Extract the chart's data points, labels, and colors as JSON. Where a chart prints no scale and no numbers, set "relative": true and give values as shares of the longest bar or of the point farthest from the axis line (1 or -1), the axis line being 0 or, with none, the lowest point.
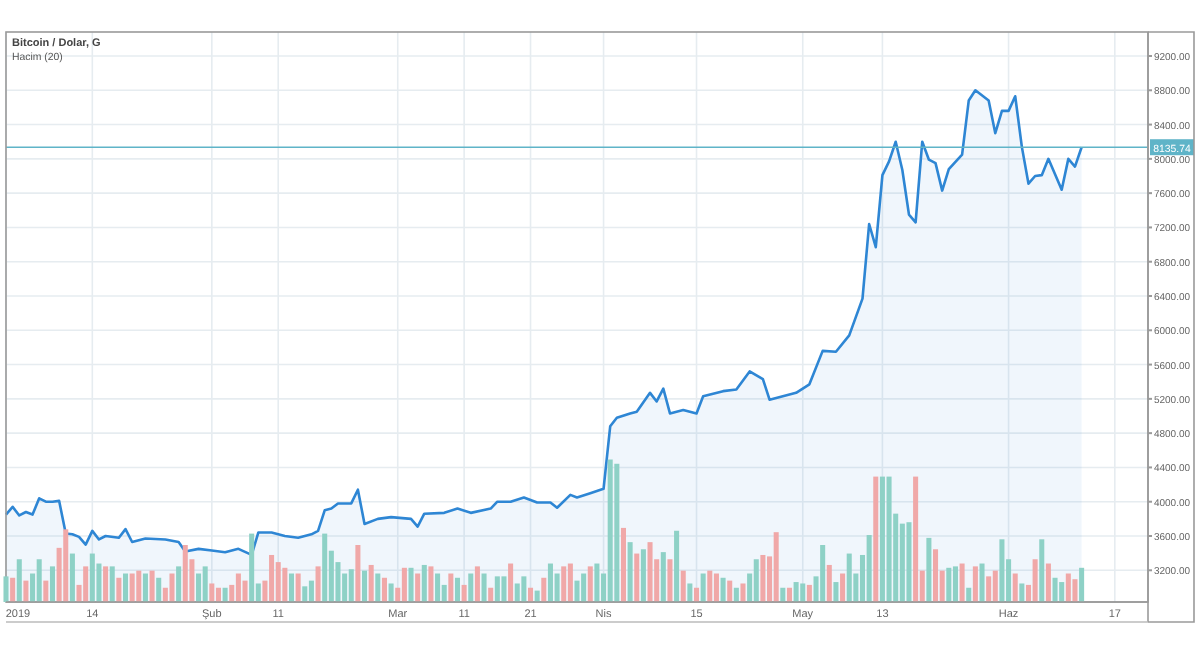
{
  "chart_data": [
    {
      "type": "area",
      "title": "Bitcoin / Dolar, G",
      "subtitle": "Hacim (20)",
      "x": [
        "2019-01-01",
        "2019-01-02",
        "2019-01-03",
        "2019-01-04",
        "2019-01-05",
        "2019-01-06",
        "2019-01-07",
        "2019-01-08",
        "2019-01-09",
        "2019-01-10",
        "2019-01-11",
        "2019-01-12",
        "2019-01-13",
        "2019-01-14",
        "2019-01-15",
        "2019-01-16",
        "2019-01-18",
        "2019-01-19",
        "2019-01-20",
        "2019-01-22",
        "2019-01-25",
        "2019-01-27",
        "2019-01-28",
        "2019-01-30",
        "2019-02-01",
        "2019-02-03",
        "2019-02-05",
        "2019-02-07",
        "2019-02-08",
        "2019-02-10",
        "2019-02-12",
        "2019-02-14",
        "2019-02-16",
        "2019-02-17",
        "2019-02-18",
        "2019-02-19",
        "2019-02-20",
        "2019-02-22",
        "2019-02-23",
        "2019-02-24",
        "2019-02-26",
        "2019-02-28",
        "2019-03-03",
        "2019-03-04",
        "2019-03-05",
        "2019-03-08",
        "2019-03-10",
        "2019-03-12",
        "2019-03-15",
        "2019-03-16",
        "2019-03-18",
        "2019-03-20",
        "2019-03-22",
        "2019-03-24",
        "2019-03-25",
        "2019-03-27",
        "2019-03-28",
        "2019-03-30",
        "2019-04-01",
        "2019-04-02",
        "2019-04-03",
        "2019-04-05",
        "2019-04-06",
        "2019-04-08",
        "2019-04-09",
        "2019-04-10",
        "2019-04-11",
        "2019-04-13",
        "2019-04-15",
        "2019-04-16",
        "2019-04-19",
        "2019-04-21",
        "2019-04-23",
        "2019-04-25",
        "2019-04-26",
        "2019-04-30",
        "2019-05-02",
        "2019-05-04",
        "2019-05-06",
        "2019-05-08",
        "2019-05-10",
        "2019-05-11",
        "2019-05-12",
        "2019-05-13",
        "2019-05-14",
        "2019-05-15",
        "2019-05-16",
        "2019-05-17",
        "2019-05-18",
        "2019-05-19",
        "2019-05-20",
        "2019-05-21",
        "2019-05-22",
        "2019-05-23",
        "2019-05-25",
        "2019-05-26",
        "2019-05-27",
        "2019-05-29",
        "2019-05-30",
        "2019-05-31",
        "2019-06-01",
        "2019-06-02",
        "2019-06-03",
        "2019-06-04",
        "2019-06-05",
        "2019-06-06",
        "2019-06-07",
        "2019-06-09",
        "2019-06-10",
        "2019-06-11",
        "2019-06-12"
      ],
      "series": [
        {
          "color": "#2e86d4",
          "values": [
            3850,
            3940,
            3840,
            3880,
            3850,
            4040,
            4000,
            4000,
            4010,
            3630,
            3620,
            3590,
            3500,
            3660,
            3560,
            3600,
            3580,
            3680,
            3530,
            3570,
            3560,
            3530,
            3420,
            3450,
            3430,
            3410,
            3450,
            3380,
            3640,
            3640,
            3600,
            3580,
            3620,
            3660,
            3900,
            3920,
            3980,
            3980,
            4140,
            3740,
            3800,
            3820,
            3800,
            3710,
            3860,
            3870,
            3920,
            3870,
            3920,
            4000,
            4000,
            4050,
            3990,
            3990,
            3930,
            4080,
            4050,
            4100,
            4150,
            4880,
            4980,
            5030,
            5050,
            5270,
            5170,
            5320,
            5030,
            5070,
            5030,
            5230,
            5290,
            5310,
            5520,
            5430,
            5190,
            5270,
            5370,
            5760,
            5750,
            5940,
            6370,
            7240,
            6970,
            7810,
            7970,
            8200,
            7870,
            7350,
            7260,
            8200,
            7990,
            7950,
            7630,
            7880,
            8050,
            8680,
            8800,
            8680,
            8300,
            8560,
            8560,
            8730,
            8140,
            7710,
            7800,
            7810,
            8000,
            7640,
            8000,
            7910,
            8135.74
          ]
        }
      ],
      "xlim": [
        "2019-01-01",
        "2019-06-22"
      ],
      "xticks": [
        {
          "value": "2019-01-01",
          "label": "2019"
        },
        {
          "value": "2019-01-14",
          "label": "14"
        },
        {
          "value": "2019-02-01",
          "label": "Şub"
        },
        {
          "value": "2019-02-11",
          "label": "11"
        },
        {
          "value": "2019-03-01",
          "label": "Mar"
        },
        {
          "value": "2019-03-11",
          "label": "11"
        },
        {
          "value": "2019-03-21",
          "label": "21"
        },
        {
          "value": "2019-04-01",
          "label": "Nis"
        },
        {
          "value": "2019-04-15",
          "label": "15"
        },
        {
          "value": "2019-05-01",
          "label": "May"
        },
        {
          "value": "2019-05-13",
          "label": "13"
        },
        {
          "value": "2019-06-01",
          "label": "Haz"
        },
        {
          "value": "2019-06-17",
          "label": "17"
        }
      ],
      "ylim": [
        2830,
        9480
      ],
      "yticks": [
        {
          "value": 3200,
          "label": "3200.00"
        },
        {
          "value": 3600,
          "label": "3600.00"
        },
        {
          "value": 4000,
          "label": "4000.00"
        },
        {
          "value": 4400,
          "label": "4400.00"
        },
        {
          "value": 4800,
          "label": "4800.00"
        },
        {
          "value": 5200,
          "label": "5200.00"
        },
        {
          "value": 5600,
          "label": "5600.00"
        },
        {
          "value": 6000,
          "label": "6000.00"
        },
        {
          "value": 6400,
          "label": "6400.00"
        },
        {
          "value": 6800,
          "label": "6800.00"
        },
        {
          "value": 7200,
          "label": "7200.00"
        },
        {
          "value": 7600,
          "label": "7600.00"
        },
        {
          "value": 8000,
          "label": "8000.00"
        },
        {
          "value": 8400,
          "label": "8400.00"
        },
        {
          "value": 8800,
          "label": "8800.00"
        },
        {
          "value": 9200,
          "label": "9200.00"
        }
      ],
      "ref_lines": [
        {
          "axis": "y",
          "value": 8135.74,
          "label": "8135.74",
          "color": "#5fb4c8"
        }
      ],
      "grid": true
    },
    {
      "type": "bar",
      "relative": true,
      "xlim": [
        "2019-01-01",
        "2019-06-22"
      ],
      "x": [
        "2019-01-01",
        "2019-01-02",
        "2019-01-03",
        "2019-01-04",
        "2019-01-05",
        "2019-01-06",
        "2019-01-07",
        "2019-01-08",
        "2019-01-09",
        "2019-01-10",
        "2019-01-11",
        "2019-01-12",
        "2019-01-13",
        "2019-01-14",
        "2019-01-15",
        "2019-01-16",
        "2019-01-17",
        "2019-01-18",
        "2019-01-19",
        "2019-01-20",
        "2019-01-21",
        "2019-01-22",
        "2019-01-23",
        "2019-01-24",
        "2019-01-25",
        "2019-01-26",
        "2019-01-27",
        "2019-01-28",
        "2019-01-29",
        "2019-01-30",
        "2019-01-31",
        "2019-02-01",
        "2019-02-02",
        "2019-02-03",
        "2019-02-04",
        "2019-02-05",
        "2019-02-06",
        "2019-02-07",
        "2019-02-08",
        "2019-02-09",
        "2019-02-10",
        "2019-02-11",
        "2019-02-12",
        "2019-02-13",
        "2019-02-14",
        "2019-02-15",
        "2019-02-16",
        "2019-02-17",
        "2019-02-18",
        "2019-02-19",
        "2019-02-20",
        "2019-02-21",
        "2019-02-22",
        "2019-02-23",
        "2019-02-24",
        "2019-02-25",
        "2019-02-26",
        "2019-02-27",
        "2019-02-28",
        "2019-03-01",
        "2019-03-02",
        "2019-03-03",
        "2019-03-04",
        "2019-03-05",
        "2019-03-06",
        "2019-03-07",
        "2019-03-08",
        "2019-03-09",
        "2019-03-10",
        "2019-03-11",
        "2019-03-12",
        "2019-03-13",
        "2019-03-14",
        "2019-03-15",
        "2019-03-16",
        "2019-03-17",
        "2019-03-18",
        "2019-03-19",
        "2019-03-20",
        "2019-03-21",
        "2019-03-22",
        "2019-03-23",
        "2019-03-24",
        "2019-03-25",
        "2019-03-26",
        "2019-03-27",
        "2019-03-28",
        "2019-03-29",
        "2019-03-30",
        "2019-03-31",
        "2019-04-01",
        "2019-04-02",
        "2019-04-03",
        "2019-04-04",
        "2019-04-05",
        "2019-04-06",
        "2019-04-07",
        "2019-04-08",
        "2019-04-09",
        "2019-04-10",
        "2019-04-11",
        "2019-04-12",
        "2019-04-13",
        "2019-04-14",
        "2019-04-15",
        "2019-04-16",
        "2019-04-17",
        "2019-04-18",
        "2019-04-19",
        "2019-04-20",
        "2019-04-21",
        "2019-04-22",
        "2019-04-23",
        "2019-04-24",
        "2019-04-25",
        "2019-04-26",
        "2019-04-27",
        "2019-04-28",
        "2019-04-29",
        "2019-04-30",
        "2019-05-01",
        "2019-05-02",
        "2019-05-03",
        "2019-05-04",
        "2019-05-05",
        "2019-05-06",
        "2019-05-07",
        "2019-05-08",
        "2019-05-09",
        "2019-05-10",
        "2019-05-11",
        "2019-05-12",
        "2019-05-13",
        "2019-05-14",
        "2019-05-15",
        "2019-05-16",
        "2019-05-17",
        "2019-05-18",
        "2019-05-19",
        "2019-05-20",
        "2019-05-21",
        "2019-05-22",
        "2019-05-23",
        "2019-05-24",
        "2019-05-25",
        "2019-05-26",
        "2019-05-27",
        "2019-05-28",
        "2019-05-29",
        "2019-05-30",
        "2019-05-31",
        "2019-06-01",
        "2019-06-02",
        "2019-06-03",
        "2019-06-04",
        "2019-06-05",
        "2019-06-06",
        "2019-06-07",
        "2019-06-08",
        "2019-06-09",
        "2019-06-10",
        "2019-06-11",
        "2019-06-12"
      ],
      "values": [
        0.18,
        0.17,
        0.3,
        0.15,
        0.2,
        0.3,
        0.15,
        0.25,
        0.38,
        0.51,
        0.34,
        0.12,
        0.25,
        0.34,
        0.27,
        0.25,
        0.25,
        0.17,
        0.2,
        0.2,
        0.22,
        0.2,
        0.22,
        0.17,
        0.1,
        0.2,
        0.25,
        0.4,
        0.3,
        0.2,
        0.25,
        0.13,
        0.1,
        0.1,
        0.12,
        0.2,
        0.15,
        0.48,
        0.13,
        0.15,
        0.33,
        0.28,
        0.24,
        0.2,
        0.2,
        0.11,
        0.15,
        0.25,
        0.48,
        0.36,
        0.28,
        0.2,
        0.23,
        0.4,
        0.22,
        0.26,
        0.2,
        0.17,
        0.13,
        0.1,
        0.24,
        0.24,
        0.2,
        0.26,
        0.25,
        0.2,
        0.12,
        0.2,
        0.17,
        0.12,
        0.2,
        0.25,
        0.2,
        0.1,
        0.18,
        0.18,
        0.27,
        0.13,
        0.18,
        0.1,
        0.08,
        0.17,
        0.27,
        0.2,
        0.25,
        0.27,
        0.15,
        0.2,
        0.25,
        0.27,
        0.2,
        1.0,
        0.97,
        0.52,
        0.42,
        0.34,
        0.37,
        0.42,
        0.3,
        0.35,
        0.3,
        0.5,
        0.22,
        0.13,
        0.1,
        0.2,
        0.22,
        0.2,
        0.17,
        0.15,
        0.1,
        0.13,
        0.2,
        0.3,
        0.33,
        0.32,
        0.49,
        0.1,
        0.1,
        0.14,
        0.13,
        0.12,
        0.18,
        0.4,
        0.26,
        0.14,
        0.2,
        0.34,
        0.2,
        0.33,
        0.47,
        0.88,
        0.88,
        0.88,
        0.62,
        0.55,
        0.56,
        0.88,
        0.22,
        0.45,
        0.37,
        0.22,
        0.24,
        0.25,
        0.27,
        0.1,
        0.25,
        0.27,
        0.18,
        0.22,
        0.44,
        0.3,
        0.2,
        0.13,
        0.12,
        0.3,
        0.44,
        0.27,
        0.17,
        0.14,
        0.2,
        0.16,
        0.24
      ],
      "colors": [
        "#8ed1c6",
        "#f0a8a8",
        "#8ed1c6",
        "#f0a8a8",
        "#8ed1c6",
        "#8ed1c6",
        "#f0a8a8",
        "#8ed1c6",
        "#f0a8a8",
        "#f0a8a8",
        "#8ed1c6",
        "#f0a8a8",
        "#f0a8a8",
        "#8ed1c6",
        "#8ed1c6",
        "#f0a8a8",
        "#8ed1c6",
        "#f0a8a8",
        "#8ed1c6",
        "#f0a8a8",
        "#f0a8a8",
        "#8ed1c6",
        "#f0a8a8",
        "#8ed1c6",
        "#f0a8a8",
        "#f0a8a8",
        "#8ed1c6",
        "#f0a8a8",
        "#f0a8a8",
        "#8ed1c6",
        "#8ed1c6",
        "#f0a8a8",
        "#f0a8a8",
        "#8ed1c6",
        "#f0a8a8",
        "#f0a8a8",
        "#f0a8a8",
        "#8ed1c6",
        "#8ed1c6",
        "#f0a8a8",
        "#f0a8a8",
        "#f0a8a8",
        "#f0a8a8",
        "#8ed1c6",
        "#f0a8a8",
        "#8ed1c6",
        "#8ed1c6",
        "#f0a8a8",
        "#8ed1c6",
        "#8ed1c6",
        "#8ed1c6",
        "#8ed1c6",
        "#8ed1c6",
        "#f0a8a8",
        "#8ed1c6",
        "#f0a8a8",
        "#8ed1c6",
        "#f0a8a8",
        "#8ed1c6",
        "#f0a8a8",
        "#f0a8a8",
        "#8ed1c6",
        "#f0a8a8",
        "#8ed1c6",
        "#f0a8a8",
        "#8ed1c6",
        "#8ed1c6",
        "#f0a8a8",
        "#8ed1c6",
        "#f0a8a8",
        "#8ed1c6",
        "#f0a8a8",
        "#8ed1c6",
        "#f0a8a8",
        "#8ed1c6",
        "#8ed1c6",
        "#f0a8a8",
        "#8ed1c6",
        "#8ed1c6",
        "#f0a8a8",
        "#8ed1c6",
        "#f0a8a8",
        "#8ed1c6",
        "#8ed1c6",
        "#f0a8a8",
        "#f0a8a8",
        "#8ed1c6",
        "#8ed1c6",
        "#f0a8a8",
        "#8ed1c6",
        "#8ed1c6",
        "#8ed1c6",
        "#8ed1c6",
        "#f0a8a8",
        "#8ed1c6",
        "#f0a8a8",
        "#8ed1c6",
        "#f0a8a8",
        "#f0a8a8",
        "#8ed1c6",
        "#f0a8a8",
        "#8ed1c6",
        "#f0a8a8",
        "#8ed1c6",
        "#f0a8a8",
        "#8ed1c6",
        "#f0a8a8",
        "#f0a8a8",
        "#8ed1c6",
        "#f0a8a8",
        "#8ed1c6",
        "#f0a8a8",
        "#8ed1c6",
        "#8ed1c6",
        "#f0a8a8",
        "#f0a8a8",
        "#f0a8a8",
        "#8ed1c6",
        "#f0a8a8",
        "#8ed1c6",
        "#8ed1c6",
        "#f0a8a8",
        "#8ed1c6",
        "#8ed1c6",
        "#f0a8a8",
        "#8ed1c6",
        "#f0a8a8",
        "#8ed1c6",
        "#8ed1c6",
        "#8ed1c6",
        "#8ed1c6",
        "#f0a8a8",
        "#8ed1c6",
        "#8ed1c6",
        "#8ed1c6",
        "#8ed1c6",
        "#8ed1c6",
        "#f0a8a8",
        "#f0a8a8",
        "#8ed1c6",
        "#f0a8a8",
        "#f0a8a8",
        "#8ed1c6",
        "#8ed1c6",
        "#f0a8a8",
        "#8ed1c6",
        "#f0a8a8",
        "#8ed1c6",
        "#f0a8a8",
        "#f0a8a8",
        "#8ed1c6",
        "#8ed1c6",
        "#f0a8a8",
        "#8ed1c6",
        "#f0a8a8",
        "#f0a8a8",
        "#8ed1c6",
        "#f0a8a8",
        "#8ed1c6",
        "#8ed1c6",
        "#f0a8a8",
        "#f0a8a8",
        "#8ed1c6"
      ]
    }
  ]
}
